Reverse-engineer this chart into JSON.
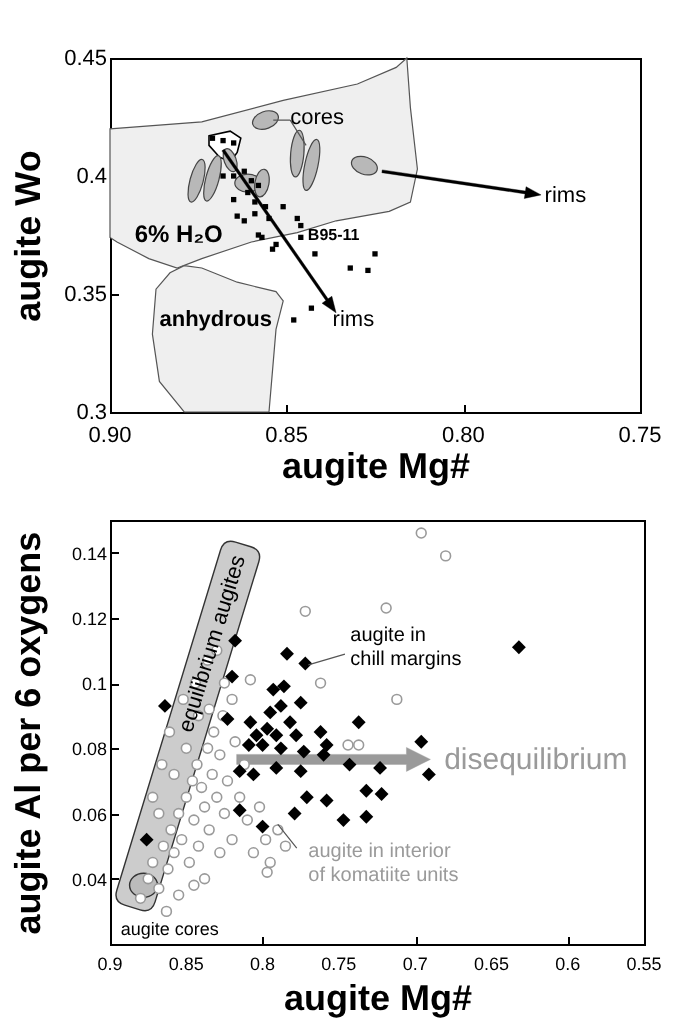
{
  "chart_data": [
    {
      "type": "scatter",
      "xlabel": "augite Mg#",
      "ylabel": "augite Wo",
      "xlim": [
        0.9,
        0.75
      ],
      "xticks": [
        {
          "value": 0.9,
          "label": "0.90"
        },
        0.85,
        {
          "value": 0.8,
          "label": "0.80"
        },
        0.75
      ],
      "ylim": [
        0.3,
        0.45
      ],
      "yticks": [
        0.3,
        0.35,
        0.4,
        0.45
      ],
      "marker": "square",
      "series": [
        {
          "color": "#000000",
          "x": [
            0.871,
            0.868,
            0.865,
            0.868,
            0.865,
            0.862,
            0.86,
            0.858,
            0.865,
            0.861,
            0.859,
            0.856,
            0.851,
            0.855,
            0.864,
            0.862,
            0.859,
            0.858,
            0.857,
            0.854,
            0.853,
            0.847,
            0.846,
            0.846,
            0.842,
            0.832,
            0.827,
            0.825,
            0.843,
            0.848
          ],
          "values": [
            0.416,
            0.415,
            0.414,
            0.4,
            0.4,
            0.402,
            0.398,
            0.396,
            0.39,
            0.393,
            0.389,
            0.387,
            0.387,
            0.382,
            0.383,
            0.381,
            0.384,
            0.375,
            0.374,
            0.369,
            0.371,
            0.382,
            0.379,
            0.374,
            0.367,
            0.361,
            0.36,
            0.367,
            0.344,
            0.339
          ]
        }
      ],
      "annotations": [
        "cores",
        "rims",
        "rims",
        "6% H₂O",
        "anhydrous",
        "B95-11"
      ]
    },
    {
      "type": "scatter",
      "xlabel": "augite Mg#",
      "ylabel": "augite Al per 6 oxygens",
      "xlim": [
        0.9,
        0.55
      ],
      "xticks": [
        0.9,
        0.85,
        0.8,
        0.75,
        0.7,
        0.65,
        0.6,
        0.55
      ],
      "ylim": [
        0.02,
        0.15
      ],
      "yticks": [
        0.04,
        0.06,
        0.08,
        0.1,
        0.12,
        0.14
      ],
      "series": [
        {
          "name": "augite in interior of komatiite units",
          "color": "#9a9a9a",
          "marker": "circle",
          "x": [
            0.696,
            0.68,
            0.772,
            0.719,
            0.762,
            0.712,
            0.744,
            0.737,
            0.797,
            0.808,
            0.88,
            0.875,
            0.872,
            0.868,
            0.865,
            0.862,
            0.86,
            0.858,
            0.855,
            0.853,
            0.85,
            0.848,
            0.846,
            0.845,
            0.843,
            0.842,
            0.84,
            0.838,
            0.836,
            0.835,
            0.833,
            0.832,
            0.83,
            0.828,
            0.826,
            0.825,
            0.823,
            0.82,
            0.818,
            0.815,
            0.812,
            0.81,
            0.806,
            0.802,
            0.798,
            0.795,
            0.79,
            0.785,
            0.868,
            0.858,
            0.85,
            0.842,
            0.838,
            0.828,
            0.82,
            0.863,
            0.855,
            0.845,
            0.872,
            0.866,
            0.861,
            0.852,
            0.844,
            0.836,
            0.83,
            0.835,
            0.825
          ],
          "values": [
            0.146,
            0.139,
            0.122,
            0.123,
            0.1,
            0.095,
            0.081,
            0.081,
            0.042,
            0.101,
            0.034,
            0.04,
            0.045,
            0.037,
            0.05,
            0.043,
            0.055,
            0.048,
            0.06,
            0.052,
            0.065,
            0.045,
            0.07,
            0.058,
            0.075,
            0.05,
            0.068,
            0.062,
            0.08,
            0.055,
            0.072,
            0.085,
            0.065,
            0.078,
            0.09,
            0.06,
            0.07,
            0.095,
            0.082,
            0.065,
            0.075,
            0.058,
            0.048,
            0.062,
            0.052,
            0.045,
            0.055,
            0.05,
            0.06,
            0.072,
            0.08,
            0.09,
            0.04,
            0.048,
            0.052,
            0.03,
            0.035,
            0.038,
            0.065,
            0.075,
            0.085,
            0.095,
            0.1,
            0.107,
            0.11,
            0.092,
            0.1
          ]
        },
        {
          "name": "augite in chill margins",
          "color": "#000000",
          "marker": "diamond",
          "x": [
            0.864,
            0.818,
            0.82,
            0.823,
            0.784,
            0.772,
            0.793,
            0.786,
            0.775,
            0.788,
            0.795,
            0.782,
            0.808,
            0.804,
            0.797,
            0.791,
            0.778,
            0.762,
            0.758,
            0.809,
            0.8,
            0.788,
            0.773,
            0.76,
            0.815,
            0.806,
            0.791,
            0.775,
            0.743,
            0.737,
            0.696,
            0.723,
            0.691,
            0.732,
            0.722,
            0.771,
            0.758,
            0.779,
            0.747,
            0.732,
            0.815,
            0.8,
            0.632,
            0.876
          ],
          "values": [
            0.093,
            0.113,
            0.102,
            0.089,
            0.109,
            0.106,
            0.098,
            0.099,
            0.094,
            0.093,
            0.091,
            0.088,
            0.088,
            0.084,
            0.086,
            0.084,
            0.084,
            0.085,
            0.081,
            0.081,
            0.081,
            0.08,
            0.079,
            0.078,
            0.073,
            0.072,
            0.074,
            0.073,
            0.075,
            0.088,
            0.082,
            0.074,
            0.072,
            0.067,
            0.066,
            0.065,
            0.064,
            0.06,
            0.058,
            0.059,
            0.061,
            0.056,
            0.111,
            0.052
          ]
        }
      ],
      "annotations": [
        "equilibrium augites",
        "disequilibrium",
        "augite cores"
      ]
    }
  ]
}
